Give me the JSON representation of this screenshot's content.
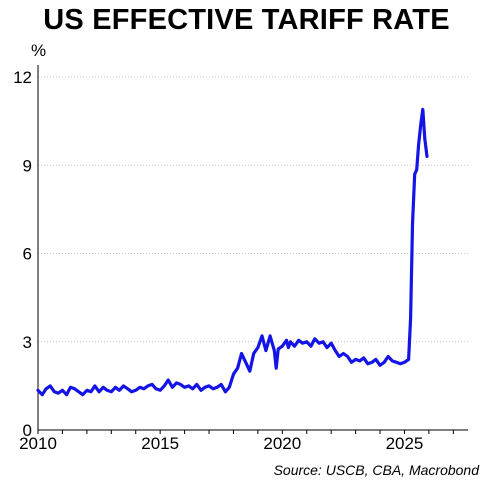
{
  "title": "US EFFECTIVE TARIFF RATE",
  "source": "Source: USCB, CBA, Macrobond",
  "line_color": "#1414e6",
  "chart_data": {
    "type": "line",
    "title": "US EFFECTIVE TARIFF RATE",
    "ylabel": "%",
    "xlabel": "",
    "xlim": [
      2010,
      2027.6
    ],
    "ylim": [
      0,
      12
    ],
    "xticks": [
      2010,
      2015,
      2020,
      2025
    ],
    "yticks": [
      0,
      3,
      6,
      9,
      12
    ],
    "grid": "horizontal dotted",
    "legend": "none",
    "series": [
      {
        "x": [
          2010.0,
          2010.17,
          2010.33,
          2010.5,
          2010.67,
          2010.83,
          2011.0,
          2011.17,
          2011.33,
          2011.5,
          2011.67,
          2011.83,
          2012.0,
          2012.17,
          2012.33,
          2012.5,
          2012.67,
          2012.83,
          2013.0,
          2013.17,
          2013.33,
          2013.5,
          2013.67,
          2013.83,
          2014.0,
          2014.17,
          2014.33,
          2014.5,
          2014.67,
          2014.83,
          2015.0,
          2015.17,
          2015.33,
          2015.5,
          2015.67,
          2015.83,
          2016.0,
          2016.17,
          2016.33,
          2016.5,
          2016.67,
          2016.83,
          2017.0,
          2017.17,
          2017.33,
          2017.5,
          2017.67,
          2017.83,
          2018.0,
          2018.17,
          2018.33,
          2018.5,
          2018.67,
          2018.83,
          2019.0,
          2019.17,
          2019.33,
          2019.5,
          2019.67,
          2019.75,
          2019.83,
          2020.0,
          2020.17,
          2020.25,
          2020.33,
          2020.5,
          2020.67,
          2020.83,
          2021.0,
          2021.17,
          2021.33,
          2021.5,
          2021.67,
          2021.83,
          2022.0,
          2022.17,
          2022.33,
          2022.5,
          2022.67,
          2022.83,
          2023.0,
          2023.17,
          2023.33,
          2023.5,
          2023.67,
          2023.83,
          2024.0,
          2024.17,
          2024.33,
          2024.5,
          2024.67,
          2024.83,
          2025.0,
          2025.17,
          2025.25,
          2025.33,
          2025.42,
          2025.5,
          2025.58,
          2025.67,
          2025.75,
          2025.83,
          2025.92
        ],
        "values": [
          1.35,
          1.2,
          1.4,
          1.5,
          1.3,
          1.25,
          1.35,
          1.2,
          1.45,
          1.4,
          1.3,
          1.2,
          1.35,
          1.3,
          1.5,
          1.3,
          1.45,
          1.35,
          1.3,
          1.45,
          1.35,
          1.5,
          1.4,
          1.3,
          1.35,
          1.45,
          1.4,
          1.5,
          1.55,
          1.4,
          1.35,
          1.5,
          1.7,
          1.45,
          1.6,
          1.55,
          1.45,
          1.5,
          1.4,
          1.55,
          1.35,
          1.45,
          1.5,
          1.4,
          1.45,
          1.55,
          1.3,
          1.45,
          1.9,
          2.1,
          2.6,
          2.3,
          2.0,
          2.6,
          2.8,
          3.2,
          2.7,
          3.2,
          2.7,
          2.1,
          2.75,
          2.85,
          3.05,
          2.8,
          3.0,
          2.85,
          3.05,
          2.95,
          3.0,
          2.85,
          3.1,
          2.95,
          3.0,
          2.8,
          2.95,
          2.7,
          2.5,
          2.6,
          2.5,
          2.3,
          2.4,
          2.35,
          2.45,
          2.25,
          2.3,
          2.4,
          2.2,
          2.3,
          2.5,
          2.35,
          2.3,
          2.25,
          2.3,
          2.4,
          3.8,
          7.0,
          8.7,
          8.85,
          9.7,
          10.4,
          10.9,
          9.9,
          9.3
        ]
      }
    ]
  }
}
